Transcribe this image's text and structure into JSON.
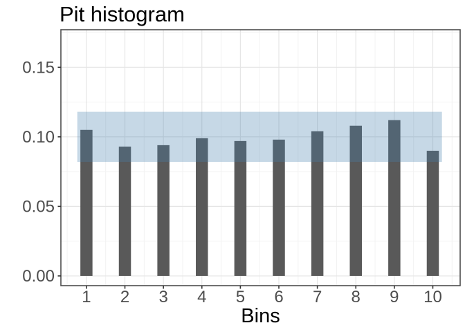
{
  "chart_data": {
    "type": "bar",
    "title": "Pit histogram",
    "xlabel": "Bins",
    "ylabel": "",
    "categories": [
      "1",
      "2",
      "3",
      "4",
      "5",
      "6",
      "7",
      "8",
      "9",
      "10"
    ],
    "values": [
      0.105,
      0.093,
      0.094,
      0.099,
      0.097,
      0.098,
      0.104,
      0.108,
      0.112,
      0.09
    ],
    "band": {
      "lower": 0.082,
      "upper": 0.118
    },
    "ytick_labels": [
      "0.00",
      "0.05",
      "0.10",
      "0.15"
    ],
    "ytick_values": [
      0.0,
      0.05,
      0.1,
      0.15
    ],
    "yminor_values": [
      0.025,
      0.075,
      0.125,
      0.175
    ],
    "ylim": [
      -0.007,
      0.177
    ],
    "grid": "major+minor",
    "legend": "none",
    "colors": {
      "bar": "#595959",
      "band": "rgba(70,128,175,0.31)",
      "panel_border": "#4d4d4d",
      "grid_major": "#e5e5e5",
      "grid_minor": "#f2f2f2",
      "tick_label": "#4d4d4d",
      "tick_mark": "#333333",
      "title": "#000000",
      "background": "#ffffff"
    }
  }
}
